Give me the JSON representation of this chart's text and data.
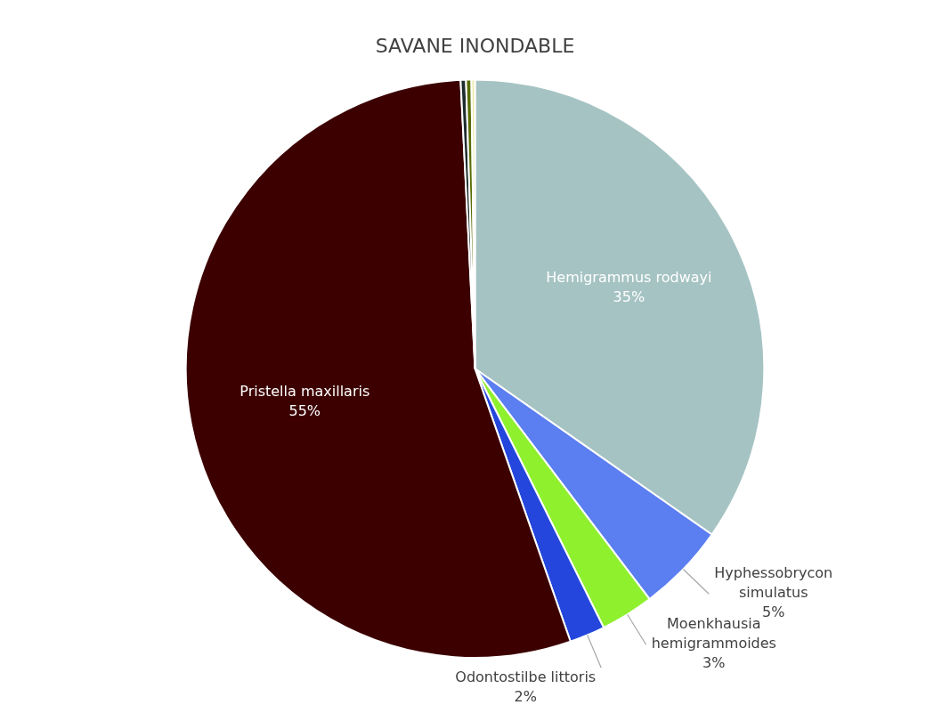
{
  "chart_data": {
    "type": "pie",
    "title": "SAVANE INONDABLE",
    "categories": [
      "Hemigrammus rodwayi",
      "Hyphessobrycon simulatus",
      "Moenkhausia hemigrammoides",
      "Odontostilbe littoris",
      "Pristella maxillaris",
      null,
      null,
      null
    ],
    "values": [
      35,
      5,
      3,
      2,
      55,
      0.3,
      0.3,
      0.2
    ],
    "value_labels": [
      "35%",
      "5%",
      "3%",
      "2%",
      "55%",
      null,
      null,
      null
    ],
    "colors": [
      "#a6c3c3",
      "#5b7ef0",
      "#8ff02e",
      "#2446dc",
      "#3c0000",
      "#1e2c2c",
      "#566b00",
      "#ecebb0"
    ],
    "legend": false
  }
}
